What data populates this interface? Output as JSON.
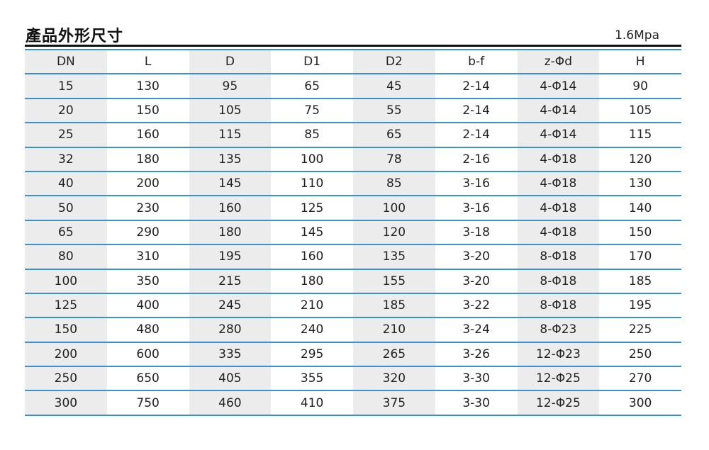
{
  "title": "產品外形尺寸",
  "pressure": "1.6Mpa",
  "table": {
    "headers": [
      "DN",
      "L",
      "D",
      "D1",
      "D2",
      "b-f",
      "z-Φd",
      "H"
    ],
    "rows": [
      [
        "15",
        "130",
        "95",
        "65",
        "45",
        "2-14",
        "4-Φ14",
        "90"
      ],
      [
        "20",
        "150",
        "105",
        "75",
        "55",
        "2-14",
        "4-Φ14",
        "105"
      ],
      [
        "25",
        "160",
        "115",
        "85",
        "65",
        "2-14",
        "4-Φ14",
        "115"
      ],
      [
        "32",
        "180",
        "135",
        "100",
        "78",
        "2-16",
        "4-Φ18",
        "120"
      ],
      [
        "40",
        "200",
        "145",
        "110",
        "85",
        "3-16",
        "4-Φ18",
        "130"
      ],
      [
        "50",
        "230",
        "160",
        "125",
        "100",
        "3-16",
        "4-Φ18",
        "140"
      ],
      [
        "65",
        "290",
        "180",
        "145",
        "120",
        "3-18",
        "4-Φ18",
        "150"
      ],
      [
        "80",
        "310",
        "195",
        "160",
        "135",
        "3-20",
        "8-Φ18",
        "170"
      ],
      [
        "100",
        "350",
        "215",
        "180",
        "155",
        "3-20",
        "8-Φ18",
        "185"
      ],
      [
        "125",
        "400",
        "245",
        "210",
        "185",
        "3-22",
        "8-Φ18",
        "195"
      ],
      [
        "150",
        "480",
        "280",
        "240",
        "210",
        "3-24",
        "8-Φ23",
        "225"
      ],
      [
        "200",
        "600",
        "335",
        "295",
        "265",
        "3-26",
        "12-Φ23",
        "250"
      ],
      [
        "250",
        "650",
        "405",
        "355",
        "320",
        "3-30",
        "12-Φ25",
        "270"
      ],
      [
        "300",
        "750",
        "460",
        "410",
        "375",
        "3-30",
        "12-Φ25",
        "300"
      ]
    ]
  },
  "colors": {
    "rule": "#3d8fd0",
    "shade": "#ececec",
    "heading_rule": "#111111"
  }
}
